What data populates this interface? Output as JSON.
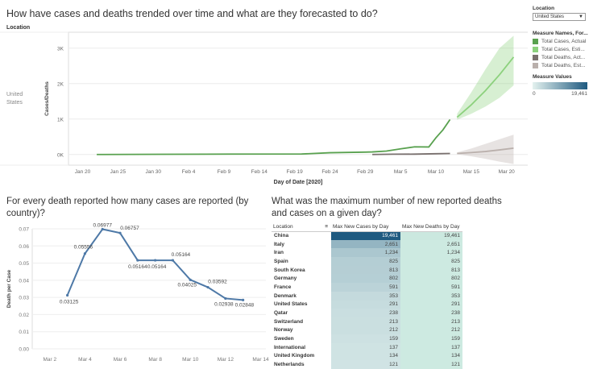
{
  "header": {
    "title": "How have cases and deaths trended over time and what are they forecasted to do?"
  },
  "top_chart": {
    "column_header": "Location",
    "row_label": "United States",
    "ylabel": "Cases/Deaths",
    "xlabel": "Day of Date [2020]"
  },
  "side": {
    "filter_title": "Location",
    "filter_value": "United States",
    "dropdown_arrow": "▼",
    "legend_title": "Measure Names, For...",
    "legend": [
      {
        "label": "Total Cases, Actual",
        "color": "#59a14f"
      },
      {
        "label": "Total Cases, Esti...",
        "color": "#8cd17d"
      },
      {
        "label": "Total Deaths, Act...",
        "color": "#79706e"
      },
      {
        "label": "Total Deaths, Est...",
        "color": "#bab0ac"
      }
    ],
    "measure_title": "Measure Values",
    "measure_min": "0",
    "measure_max": "19,461"
  },
  "left_panel": {
    "title": "For every death reported how many cases are reported (by country)?"
  },
  "right_panel": {
    "title": "What was the maximum number of new reported deaths and cases on a given day?"
  },
  "chart_data": [
    {
      "type": "line",
      "xlabel": "Day of Date [2020]",
      "ylabel": "Cases/Deaths",
      "ylim": [
        -300,
        3450
      ],
      "yticks": [
        0,
        1000,
        2000,
        3000
      ],
      "ytick_labels": [
        "0K",
        "1K",
        "2K",
        "3K"
      ],
      "xticks": [
        "Jan 20",
        "Jan 25",
        "Jan 30",
        "Feb 4",
        "Feb 9",
        "Feb 14",
        "Feb 19",
        "Feb 24",
        "Feb 29",
        "Mar 5",
        "Mar 10",
        "Mar 15",
        "Mar 20"
      ],
      "grid": true,
      "series": [
        {
          "name": "Total Cases, Actual",
          "color": "#59a14f",
          "points": [
            [
              "Jan 22",
              1
            ],
            [
              "Jan 31",
              6
            ],
            [
              "Feb 10",
              12
            ],
            [
              "Feb 20",
              15
            ],
            [
              "Feb 24",
              51
            ],
            [
              "Feb 29",
              68
            ],
            [
              "Mar 1",
              74
            ],
            [
              "Mar 3",
              98
            ],
            [
              "Mar 5",
              160
            ],
            [
              "Mar 7",
              217
            ],
            [
              "Mar 9",
              213
            ],
            [
              "Mar 10",
              472
            ],
            [
              "Mar 11",
              696
            ],
            [
              "Mar 12",
              987
            ]
          ]
        },
        {
          "name": "Total Cases, Esti...",
          "color": "#8cd17d",
          "points": [
            [
              "Mar 13",
              1050
            ],
            [
              "Mar 15",
              1400
            ],
            [
              "Mar 17",
              1800
            ],
            [
              "Mar 19",
              2250
            ],
            [
              "Mar 21",
              2750
            ]
          ],
          "band_upper": [
            1150,
            1750,
            2400,
            3000,
            3350
          ],
          "band_lower": [
            980,
            1150,
            1350,
            1600,
            1950
          ]
        },
        {
          "name": "Total Deaths, Act...",
          "color": "#79706e",
          "points": [
            [
              "Mar 1",
              1
            ],
            [
              "Mar 4",
              9
            ],
            [
              "Mar 7",
              11
            ],
            [
              "Mar 10",
              22
            ],
            [
              "Mar 12",
              29
            ]
          ]
        },
        {
          "name": "Total Deaths, Est...",
          "color": "#bab0ac",
          "points": [
            [
              "Mar 13",
              30
            ],
            [
              "Mar 15",
              55
            ],
            [
              "Mar 17",
              85
            ],
            [
              "Mar 19",
              130
            ],
            [
              "Mar 21",
              180
            ]
          ],
          "band_upper": [
            60,
            170,
            300,
            430,
            560
          ],
          "band_lower": [
            10,
            -50,
            -120,
            -200,
            -270
          ]
        }
      ]
    },
    {
      "type": "line",
      "ylabel": "Death per Case",
      "ylim": [
        0,
        0.07
      ],
      "yticks": [
        0,
        0.01,
        0.02,
        0.03,
        0.04,
        0.05,
        0.06,
        0.07
      ],
      "ytick_labels": [
        "0.00",
        "0.01",
        "0.02",
        "0.03",
        "0.04",
        "0.05",
        "0.06",
        "0.07"
      ],
      "xticks": [
        "Mar 2",
        "Mar 4",
        "Mar 6",
        "Mar 8",
        "Mar 10",
        "Mar 12",
        "Mar 14"
      ],
      "grid": true,
      "series": [
        {
          "color": "#4e79a7",
          "points": [
            {
              "x": "Mar 3",
              "y": 0.03125,
              "label": "0.03125"
            },
            {
              "x": "Mar 4",
              "y": 0.05556,
              "label": "0.05556"
            },
            {
              "x": "Mar 5",
              "y": 0.06977,
              "label": "0.06977"
            },
            {
              "x": "Mar 6",
              "y": 0.06757,
              "label": "0.06757"
            },
            {
              "x": "Mar 7",
              "y": 0.05164,
              "label": "0.05164"
            },
            {
              "x": "Mar 8",
              "y": 0.05164,
              "label": "0.05164"
            },
            {
              "x": "Mar 9",
              "y": 0.05164,
              "label": "0.05164"
            },
            {
              "x": "Mar 10",
              "y": 0.04025,
              "label": "0.04025"
            },
            {
              "x": "Mar 11",
              "y": 0.03592,
              "label": "0.03592"
            },
            {
              "x": "Mar 12",
              "y": 0.02938,
              "label": "0.02938"
            },
            {
              "x": "Mar 13",
              "y": 0.02848,
              "label": "0.02848"
            }
          ]
        }
      ]
    },
    {
      "type": "table",
      "columns": [
        "Location",
        "Max New Cases by Day",
        "Max New Deaths by Day"
      ],
      "sort_icon": "≡",
      "rows": [
        {
          "location": "China",
          "cases": 19461,
          "deaths": 19461,
          "cases_label": "19,461",
          "deaths_label": "19,461"
        },
        {
          "location": "Italy",
          "cases": 2651,
          "deaths": 2651,
          "cases_label": "2,651",
          "deaths_label": "2,651"
        },
        {
          "location": "Iran",
          "cases": 1234,
          "deaths": 1234,
          "cases_label": "1,234",
          "deaths_label": "1,234"
        },
        {
          "location": "Spain",
          "cases": 825,
          "deaths": 825,
          "cases_label": "825",
          "deaths_label": "825"
        },
        {
          "location": "South Korea",
          "cases": 813,
          "deaths": 813,
          "cases_label": "813",
          "deaths_label": "813"
        },
        {
          "location": "Germany",
          "cases": 802,
          "deaths": 802,
          "cases_label": "802",
          "deaths_label": "802"
        },
        {
          "location": "France",
          "cases": 591,
          "deaths": 591,
          "cases_label": "591",
          "deaths_label": "591"
        },
        {
          "location": "Denmark",
          "cases": 353,
          "deaths": 353,
          "cases_label": "353",
          "deaths_label": "353"
        },
        {
          "location": "United States",
          "cases": 291,
          "deaths": 291,
          "cases_label": "291",
          "deaths_label": "291"
        },
        {
          "location": "Qatar",
          "cases": 238,
          "deaths": 238,
          "cases_label": "238",
          "deaths_label": "238"
        },
        {
          "location": "Switzerland",
          "cases": 213,
          "deaths": 213,
          "cases_label": "213",
          "deaths_label": "213"
        },
        {
          "location": "Norway",
          "cases": 212,
          "deaths": 212,
          "cases_label": "212",
          "deaths_label": "212"
        },
        {
          "location": "Sweden",
          "cases": 159,
          "deaths": 159,
          "cases_label": "159",
          "deaths_label": "159"
        },
        {
          "location": "International",
          "cases": 137,
          "deaths": 137,
          "cases_label": "137",
          "deaths_label": "137"
        },
        {
          "location": "United Kingdom",
          "cases": 134,
          "deaths": 134,
          "cases_label": "134",
          "deaths_label": "134"
        },
        {
          "location": "Netherlands",
          "cases": 121,
          "deaths": 121,
          "cases_label": "121",
          "deaths_label": "121"
        }
      ],
      "color_min": 0,
      "color_max": 19461
    }
  ]
}
